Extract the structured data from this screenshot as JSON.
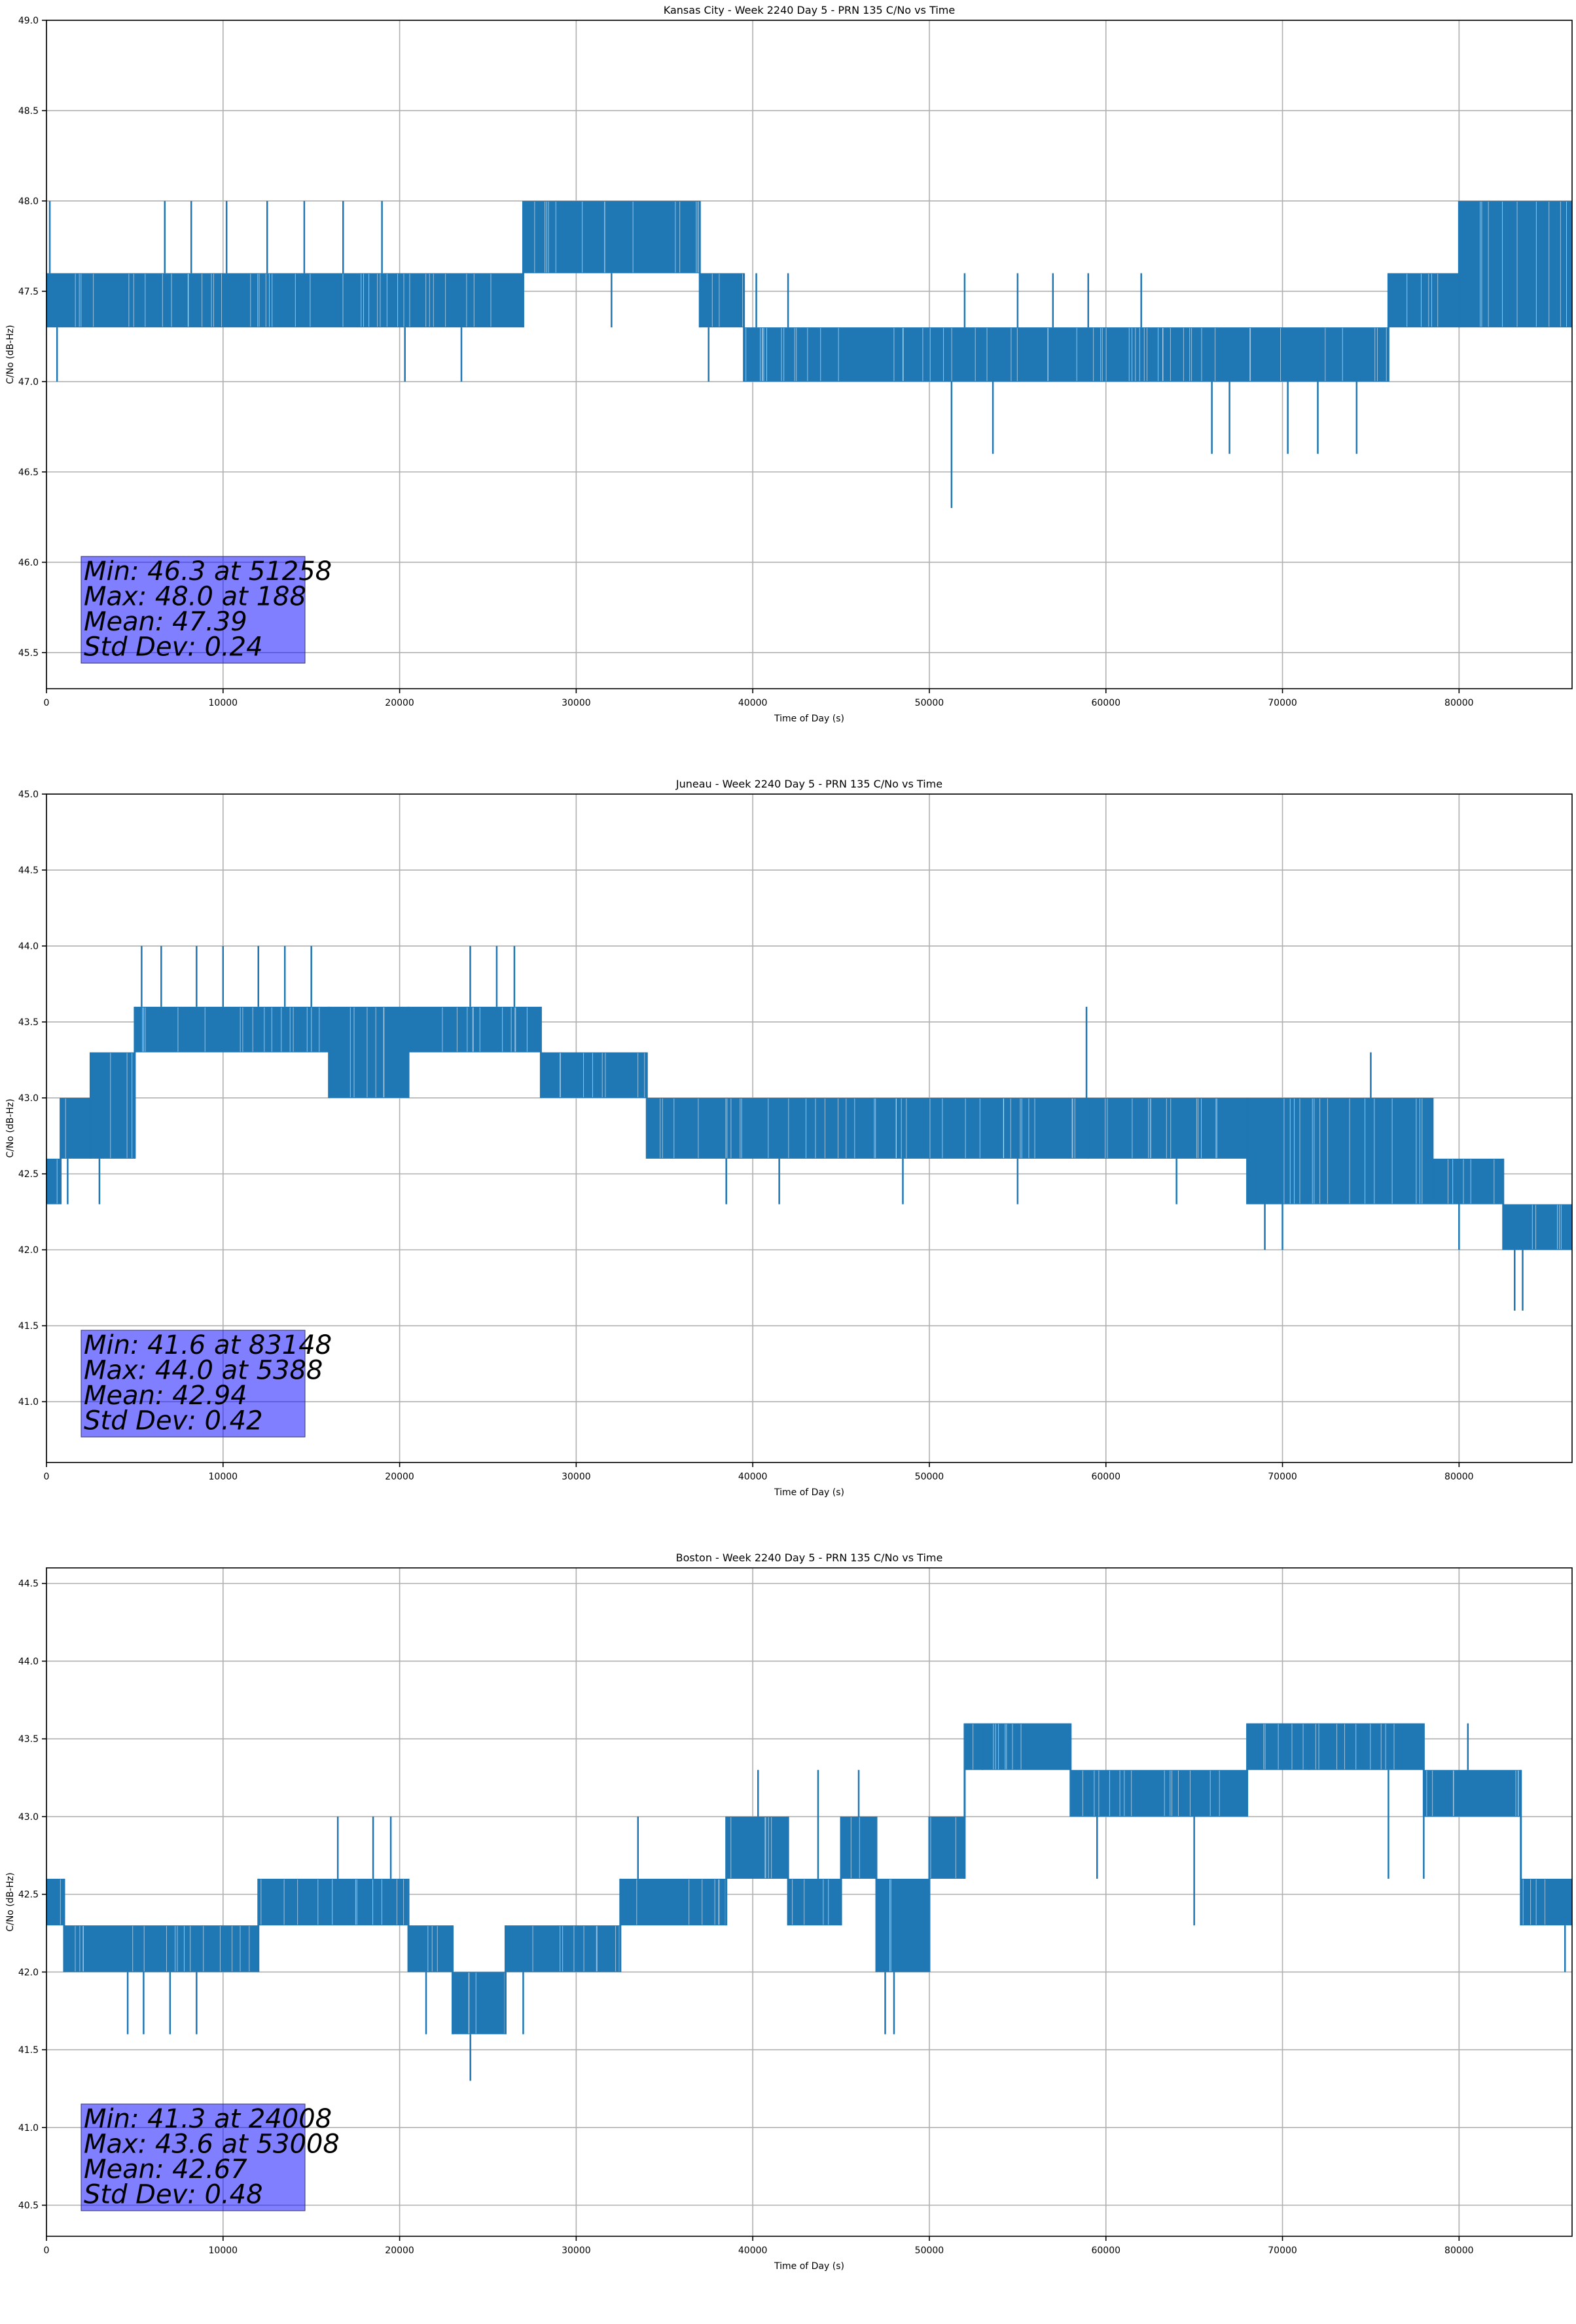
{
  "chart_data": [
    {
      "type": "line",
      "title": "Kansas City - Week 2240 Day 5 - PRN 135 C/No vs Time",
      "xlabel": "Time of Day (s)",
      "ylabel": "C/No (dB-Hz)",
      "xlim": [
        0,
        86400
      ],
      "ylim": [
        45.3,
        49.0
      ],
      "xticks": [
        0,
        10000,
        20000,
        30000,
        40000,
        50000,
        60000,
        70000,
        80000
      ],
      "yticks": [
        45.5,
        46.0,
        46.5,
        47.0,
        47.5,
        48.0,
        48.5,
        49.0
      ],
      "ytick_labels": [
        "45.5",
        "46.0",
        "46.5",
        "47.0",
        "47.5",
        "48.0",
        "48.5",
        "49.0"
      ],
      "grid": true,
      "color": "#1f77b4",
      "series": [
        {
          "segments": [
            {
              "x_start": 0,
              "x_end": 27000,
              "low": 47.3,
              "high": 47.6
            },
            {
              "x_start": 27000,
              "x_end": 37000,
              "low": 47.6,
              "high": 48.0
            },
            {
              "x_start": 37000,
              "x_end": 39500,
              "low": 47.3,
              "high": 47.6
            },
            {
              "x_start": 39500,
              "x_end": 76000,
              "low": 47.0,
              "high": 47.3
            },
            {
              "x_start": 76000,
              "x_end": 80000,
              "low": 47.3,
              "high": 47.6
            },
            {
              "x_start": 80000,
              "x_end": 86400,
              "low": 47.3,
              "high": 48.0
            }
          ],
          "spikes": [
            {
              "x": 188,
              "y": 48.0
            },
            {
              "x": 600,
              "y": 47.0
            },
            {
              "x": 6700,
              "y": 48.0
            },
            {
              "x": 8200,
              "y": 48.0
            },
            {
              "x": 10200,
              "y": 48.0
            },
            {
              "x": 12500,
              "y": 48.0
            },
            {
              "x": 14600,
              "y": 48.0
            },
            {
              "x": 16800,
              "y": 48.0
            },
            {
              "x": 19000,
              "y": 48.0
            },
            {
              "x": 20300,
              "y": 47.0
            },
            {
              "x": 23500,
              "y": 47.0
            },
            {
              "x": 32000,
              "y": 47.3
            },
            {
              "x": 37500,
              "y": 47.0
            },
            {
              "x": 40200,
              "y": 47.6
            },
            {
              "x": 42000,
              "y": 47.6
            },
            {
              "x": 51258,
              "y": 46.3
            },
            {
              "x": 52000,
              "y": 47.6
            },
            {
              "x": 53600,
              "y": 46.6
            },
            {
              "x": 55000,
              "y": 47.6
            },
            {
              "x": 57000,
              "y": 47.6
            },
            {
              "x": 59000,
              "y": 47.6
            },
            {
              "x": 62000,
              "y": 47.6
            },
            {
              "x": 66000,
              "y": 46.6
            },
            {
              "x": 67000,
              "y": 46.6
            },
            {
              "x": 70300,
              "y": 46.6
            },
            {
              "x": 72000,
              "y": 46.6
            },
            {
              "x": 74200,
              "y": 46.6
            },
            {
              "x": 80500,
              "y": 47.3
            }
          ]
        }
      ],
      "stats": [
        "Min: 46.3 at 51258",
        "Max: 48.0 at 188",
        "Mean: 47.39",
        "Std Dev: 0.24"
      ]
    },
    {
      "type": "line",
      "title": "Juneau - Week 2240 Day 5 - PRN 135 C/No vs Time",
      "xlabel": "Time of Day (s)",
      "ylabel": "C/No (dB-Hz)",
      "xlim": [
        0,
        86400
      ],
      "ylim": [
        40.6,
        45.0
      ],
      "xticks": [
        0,
        10000,
        20000,
        30000,
        40000,
        50000,
        60000,
        70000,
        80000
      ],
      "yticks": [
        41.0,
        41.5,
        42.0,
        42.5,
        43.0,
        43.5,
        44.0,
        44.5,
        45.0
      ],
      "ytick_labels": [
        "41.0",
        "41.5",
        "42.0",
        "42.5",
        "43.0",
        "43.5",
        "44.0",
        "44.5",
        "45.0"
      ],
      "grid": true,
      "color": "#1f77b4",
      "series": [
        {
          "segments": [
            {
              "x_start": 0,
              "x_end": 800,
              "low": 42.3,
              "high": 42.6
            },
            {
              "x_start": 800,
              "x_end": 2500,
              "low": 42.6,
              "high": 43.0
            },
            {
              "x_start": 2500,
              "x_end": 5000,
              "low": 42.6,
              "high": 43.3
            },
            {
              "x_start": 5000,
              "x_end": 16000,
              "low": 43.3,
              "high": 43.6
            },
            {
              "x_start": 16000,
              "x_end": 20500,
              "low": 43.0,
              "high": 43.6
            },
            {
              "x_start": 20500,
              "x_end": 28000,
              "low": 43.3,
              "high": 43.6
            },
            {
              "x_start": 28000,
              "x_end": 34000,
              "low": 43.0,
              "high": 43.3
            },
            {
              "x_start": 34000,
              "x_end": 59000,
              "low": 42.6,
              "high": 43.0
            },
            {
              "x_start": 59000,
              "x_end": 68000,
              "low": 42.6,
              "high": 43.0
            },
            {
              "x_start": 68000,
              "x_end": 78500,
              "low": 42.3,
              "high": 43.0
            },
            {
              "x_start": 78500,
              "x_end": 82500,
              "low": 42.3,
              "high": 42.6
            },
            {
              "x_start": 82500,
              "x_end": 86400,
              "low": 42.0,
              "high": 42.3
            }
          ],
          "spikes": [
            {
              "x": 5388,
              "y": 44.0
            },
            {
              "x": 6500,
              "y": 44.0
            },
            {
              "x": 8500,
              "y": 44.0
            },
            {
              "x": 10000,
              "y": 44.0
            },
            {
              "x": 12000,
              "y": 44.0
            },
            {
              "x": 13500,
              "y": 44.0
            },
            {
              "x": 15000,
              "y": 44.0
            },
            {
              "x": 24000,
              "y": 44.0
            },
            {
              "x": 25500,
              "y": 44.0
            },
            {
              "x": 26500,
              "y": 44.0
            },
            {
              "x": 1200,
              "y": 42.3
            },
            {
              "x": 3000,
              "y": 42.3
            },
            {
              "x": 38500,
              "y": 42.3
            },
            {
              "x": 41500,
              "y": 42.3
            },
            {
              "x": 48500,
              "y": 42.3
            },
            {
              "x": 55000,
              "y": 42.3
            },
            {
              "x": 58900,
              "y": 43.6
            },
            {
              "x": 64000,
              "y": 42.3
            },
            {
              "x": 69000,
              "y": 42.0
            },
            {
              "x": 70000,
              "y": 42.0
            },
            {
              "x": 75000,
              "y": 43.3
            },
            {
              "x": 80000,
              "y": 42.0
            },
            {
              "x": 83148,
              "y": 41.6
            },
            {
              "x": 83600,
              "y": 41.6
            }
          ]
        }
      ],
      "stats": [
        "Min: 41.6 at 83148",
        "Max: 44.0 at 5388",
        "Mean: 42.94",
        "Std Dev: 0.42"
      ]
    },
    {
      "type": "line",
      "title": "Boston - Week 2240 Day 5 - PRN 135 C/No vs Time",
      "xlabel": "Time of Day (s)",
      "ylabel": "C/No (dB-Hz)",
      "xlim": [
        0,
        86400
      ],
      "ylim": [
        40.3,
        44.6
      ],
      "xticks": [
        0,
        10000,
        20000,
        30000,
        40000,
        50000,
        60000,
        70000,
        80000
      ],
      "yticks": [
        40.5,
        41.0,
        41.5,
        42.0,
        42.5,
        43.0,
        43.5,
        44.0,
        44.5
      ],
      "ytick_labels": [
        "40.5",
        "41.0",
        "41.5",
        "42.0",
        "42.5",
        "43.0",
        "43.5",
        "44.0",
        "44.5"
      ],
      "grid": true,
      "color": "#1f77b4",
      "series": [
        {
          "segments": [
            {
              "x_start": 0,
              "x_end": 1000,
              "low": 42.3,
              "high": 42.6
            },
            {
              "x_start": 1000,
              "x_end": 12000,
              "low": 42.0,
              "high": 42.3
            },
            {
              "x_start": 12000,
              "x_end": 20500,
              "low": 42.3,
              "high": 42.6
            },
            {
              "x_start": 20500,
              "x_end": 23000,
              "low": 42.0,
              "high": 42.3
            },
            {
              "x_start": 23000,
              "x_end": 26000,
              "low": 41.6,
              "high": 42.0
            },
            {
              "x_start": 26000,
              "x_end": 32500,
              "low": 42.0,
              "high": 42.3
            },
            {
              "x_start": 32500,
              "x_end": 38500,
              "low": 42.3,
              "high": 42.6
            },
            {
              "x_start": 38500,
              "x_end": 42000,
              "low": 42.6,
              "high": 43.0
            },
            {
              "x_start": 42000,
              "x_end": 45000,
              "low": 42.3,
              "high": 42.6
            },
            {
              "x_start": 45000,
              "x_end": 47000,
              "low": 42.6,
              "high": 43.0
            },
            {
              "x_start": 47000,
              "x_end": 50000,
              "low": 42.0,
              "high": 42.6
            },
            {
              "x_start": 50000,
              "x_end": 52000,
              "low": 42.6,
              "high": 43.0
            },
            {
              "x_start": 52000,
              "x_end": 58000,
              "low": 43.3,
              "high": 43.6
            },
            {
              "x_start": 58000,
              "x_end": 68000,
              "low": 43.0,
              "high": 43.3
            },
            {
              "x_start": 68000,
              "x_end": 78000,
              "low": 43.3,
              "high": 43.6
            },
            {
              "x_start": 78000,
              "x_end": 83500,
              "low": 43.0,
              "high": 43.3
            },
            {
              "x_start": 83500,
              "x_end": 86400,
              "low": 42.3,
              "high": 42.6
            }
          ],
          "spikes": [
            {
              "x": 4600,
              "y": 41.6
            },
            {
              "x": 5500,
              "y": 41.6
            },
            {
              "x": 7000,
              "y": 41.6
            },
            {
              "x": 8500,
              "y": 41.6
            },
            {
              "x": 16500,
              "y": 43.0
            },
            {
              "x": 18500,
              "y": 43.0
            },
            {
              "x": 19500,
              "y": 43.0
            },
            {
              "x": 21500,
              "y": 41.6
            },
            {
              "x": 24008,
              "y": 41.3
            },
            {
              "x": 27000,
              "y": 41.6
            },
            {
              "x": 33500,
              "y": 43.0
            },
            {
              "x": 40300,
              "y": 43.3
            },
            {
              "x": 43700,
              "y": 43.3
            },
            {
              "x": 46000,
              "y": 43.3
            },
            {
              "x": 48000,
              "y": 41.6
            },
            {
              "x": 47500,
              "y": 41.6
            },
            {
              "x": 53008,
              "y": 43.6
            },
            {
              "x": 59500,
              "y": 42.6
            },
            {
              "x": 65000,
              "y": 42.3
            },
            {
              "x": 71500,
              "y": 43.6
            },
            {
              "x": 76000,
              "y": 42.6
            },
            {
              "x": 78000,
              "y": 42.6
            },
            {
              "x": 80500,
              "y": 43.6
            },
            {
              "x": 86000,
              "y": 42.0
            }
          ]
        }
      ],
      "stats": [
        "Min: 41.3 at 24008",
        "Max: 43.6 at 53008",
        "Mean: 42.67",
        "Std Dev: 0.48"
      ]
    }
  ]
}
